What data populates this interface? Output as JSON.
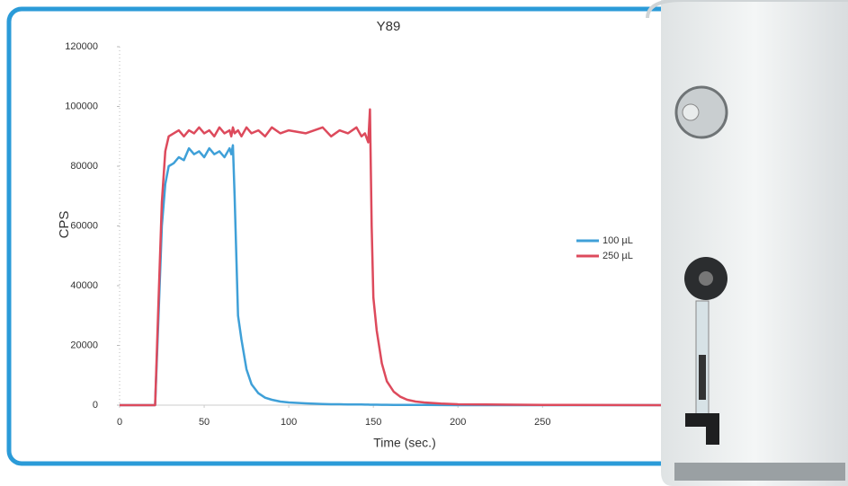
{
  "chart_data": {
    "type": "line",
    "title": "Y89",
    "x_label": "Time (sec.)",
    "y_label": "CPS",
    "x": [
      0,
      21,
      23,
      25,
      27,
      29,
      32,
      35,
      38,
      41,
      44,
      47,
      50,
      53,
      56,
      59,
      62,
      65,
      66,
      67,
      68,
      70,
      72,
      75,
      78,
      82,
      86,
      90,
      95,
      100,
      110,
      120,
      125,
      130,
      135,
      140,
      143,
      145,
      147,
      148,
      149,
      150,
      152,
      155,
      158,
      162,
      166,
      170,
      175,
      180,
      190,
      200,
      250,
      320
    ],
    "series": [
      {
        "name": "100 µL",
        "color": "#3fa0d8",
        "values": [
          0,
          0,
          30000,
          60000,
          74000,
          80000,
          81000,
          83000,
          82000,
          86000,
          84000,
          85000,
          83000,
          86000,
          84000,
          85000,
          83000,
          86000,
          84000,
          87000,
          70000,
          30000,
          22000,
          12000,
          7000,
          4000,
          2500,
          1800,
          1200,
          900,
          600,
          400,
          300,
          300,
          250,
          200,
          200,
          180,
          170,
          160,
          150,
          150,
          140,
          130,
          120,
          100,
          90,
          80,
          70,
          60,
          40,
          0,
          0,
          0
        ]
      },
      {
        "name": "250 µL",
        "color": "#dd4a5c",
        "values": [
          0,
          0,
          35000,
          68000,
          85000,
          90000,
          91000,
          92000,
          90000,
          92000,
          91000,
          93000,
          91000,
          92000,
          90000,
          93000,
          91000,
          92000,
          90000,
          93000,
          91000,
          92000,
          90000,
          93000,
          91000,
          92000,
          90000,
          93000,
          91000,
          92000,
          91000,
          93000,
          90000,
          92000,
          91000,
          93000,
          90000,
          91000,
          88000,
          99000,
          60000,
          36000,
          25000,
          14000,
          8000,
          4500,
          2800,
          1800,
          1200,
          900,
          500,
          300,
          100,
          0
        ]
      }
    ],
    "xlim": [
      0,
      320
    ],
    "xticks": [
      0,
      50,
      100,
      150,
      200,
      250
    ],
    "ylim": [
      0,
      120000
    ],
    "yticks": [
      0,
      20000,
      40000,
      60000,
      80000,
      100000,
      120000
    ],
    "legend": "right",
    "grid": false
  }
}
